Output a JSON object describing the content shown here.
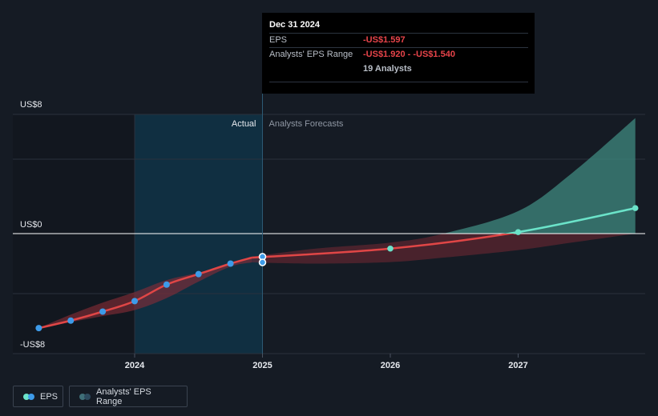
{
  "tooltip": {
    "date": "Dec 31 2024",
    "eps_label": "EPS",
    "eps_value": "-US$1.597",
    "range_label": "Analysts' EPS Range",
    "range_value": "-US$1.920 - -US$1.540",
    "analysts": "19 Analysts"
  },
  "legend": {
    "eps_label": "EPS",
    "range_label": "Analysts' EPS Range"
  },
  "colors": {
    "background": "#151b24",
    "actual_line": "#e04646",
    "forecast_positive_line": "#6be3c9",
    "actual_points": "#3d9be9",
    "forecast_range_negative": "#8a2d37",
    "forecast_range_positive": "#3f8a7f",
    "actual_shading": "#0f3247"
  },
  "chart_data": {
    "type": "line",
    "ylabel_top": "US$8",
    "ylabel_zero": "US$0",
    "ylabel_bottom": "-US$8",
    "ylim": [
      -8,
      8
    ],
    "x_ticks": [
      "2024",
      "2025",
      "2026",
      "2027"
    ],
    "section_labels": {
      "actual": "Actual",
      "forecast": "Analysts Forecasts"
    },
    "actual": {
      "x": [
        "2023-04",
        "2023-07",
        "2023-10",
        "2024-01",
        "2024-04",
        "2024-07",
        "2024-10",
        "2024-12"
      ],
      "y": [
        -6.3,
        -5.8,
        -5.2,
        -4.5,
        -3.4,
        -2.7,
        -2.0,
        -1.6
      ]
    },
    "actual_range": {
      "upper": [
        -6.3,
        -5.4,
        -4.6,
        -3.9,
        -3.1,
        -2.6,
        -2.0,
        -1.54
      ],
      "lower": [
        -6.3,
        -5.9,
        -5.5,
        -5.1,
        -4.3,
        -3.2,
        -2.2,
        -1.92
      ]
    },
    "forecast": {
      "x": [
        "2024-12",
        "2026-01",
        "2027-01",
        "2027-12"
      ],
      "y": [
        -1.6,
        -1.0,
        0.1,
        1.7
      ]
    },
    "forecast_range": {
      "x": [
        "2024-12",
        "2025-06",
        "2026-01",
        "2026-06",
        "2027-01",
        "2027-06",
        "2027-12"
      ],
      "upper": [
        -1.54,
        -1.0,
        -0.6,
        0.0,
        1.5,
        4.0,
        7.7
      ],
      "lower": [
        -1.92,
        -2.0,
        -1.9,
        -1.6,
        -1.1,
        -0.6,
        0.0
      ]
    },
    "tooltip_markers": [
      -1.54,
      -1.92
    ],
    "grid": true,
    "legend_position": "bottom-left"
  }
}
